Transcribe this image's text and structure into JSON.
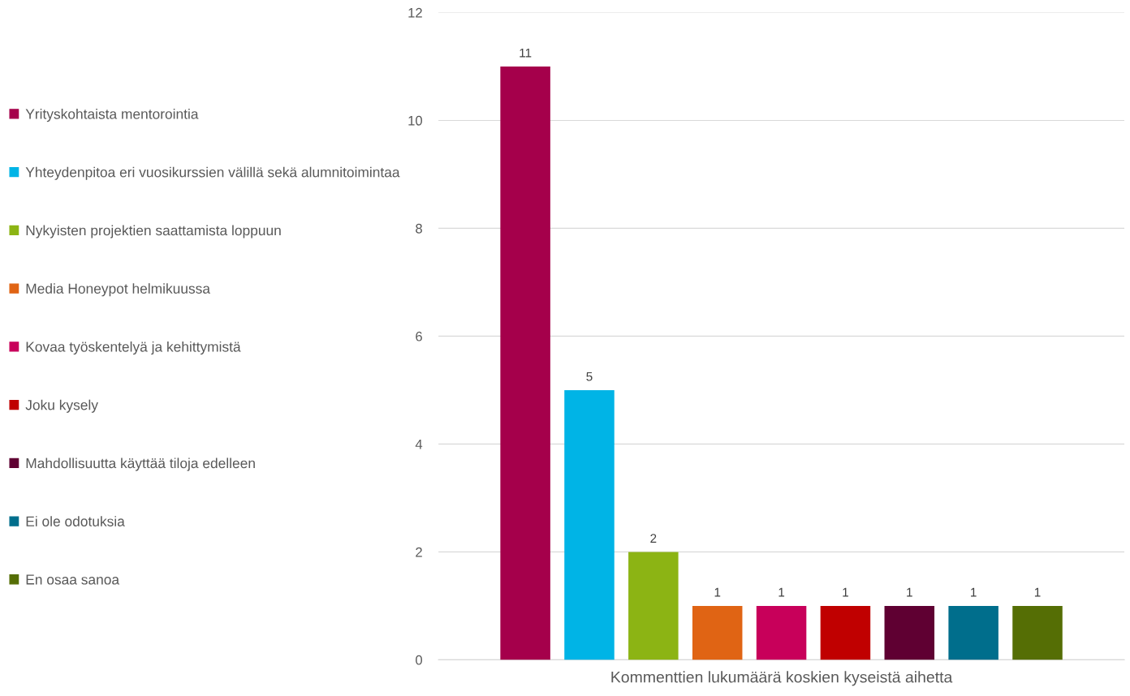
{
  "chart_data": {
    "type": "bar",
    "categories": [
      "Kommenttien lukumäärä koskien kyseistä aihetta"
    ],
    "series": [
      {
        "name": "Yrityskohtaista mentorointia",
        "color": "#a5004b",
        "values": [
          11
        ]
      },
      {
        "name": "Yhteydenpitoa eri vuosikurssien välillä sekä alumnitoimintaa",
        "color": "#00b4e6",
        "values": [
          5
        ]
      },
      {
        "name": "Nykyisten projektien saattamista loppuun",
        "color": "#8cb414",
        "values": [
          2
        ]
      },
      {
        "name": "Media Honeypot helmikuussa",
        "color": "#e06414",
        "values": [
          1
        ]
      },
      {
        "name": "Kovaa työskentelyä ja kehittymistä",
        "color": "#c8005a",
        "values": [
          1
        ]
      },
      {
        "name": "Joku kysely",
        "color": "#c00000",
        "values": [
          1
        ]
      },
      {
        "name": "Mahdollisuutta käyttää tiloja edelleen",
        "color": "#5f0032",
        "values": [
          1
        ]
      },
      {
        "name": "Ei ole odotuksia",
        "color": "#006e8c",
        "values": [
          1
        ]
      },
      {
        "name": "En osaa sanoa",
        "color": "#556e05",
        "values": [
          1
        ]
      }
    ],
    "ylim": [
      0,
      12
    ],
    "yticks": [
      0,
      2,
      4,
      6,
      8,
      10,
      12
    ],
    "grid": "y",
    "legend": "left",
    "data_labels": true
  }
}
